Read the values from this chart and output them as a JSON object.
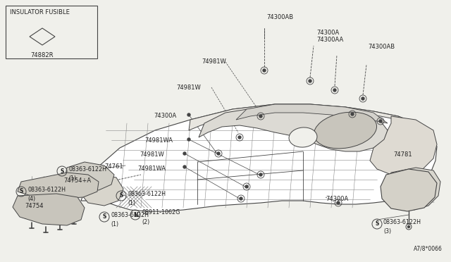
{
  "bg_color": "#f0f0eb",
  "line_color": "#444444",
  "text_color": "#222222",
  "fig_width": 6.4,
  "fig_height": 3.72,
  "diagram_code": "A7/8*0066",
  "legend_label": "INSULATOR FUSIBLE",
  "legend_part": "74882R"
}
